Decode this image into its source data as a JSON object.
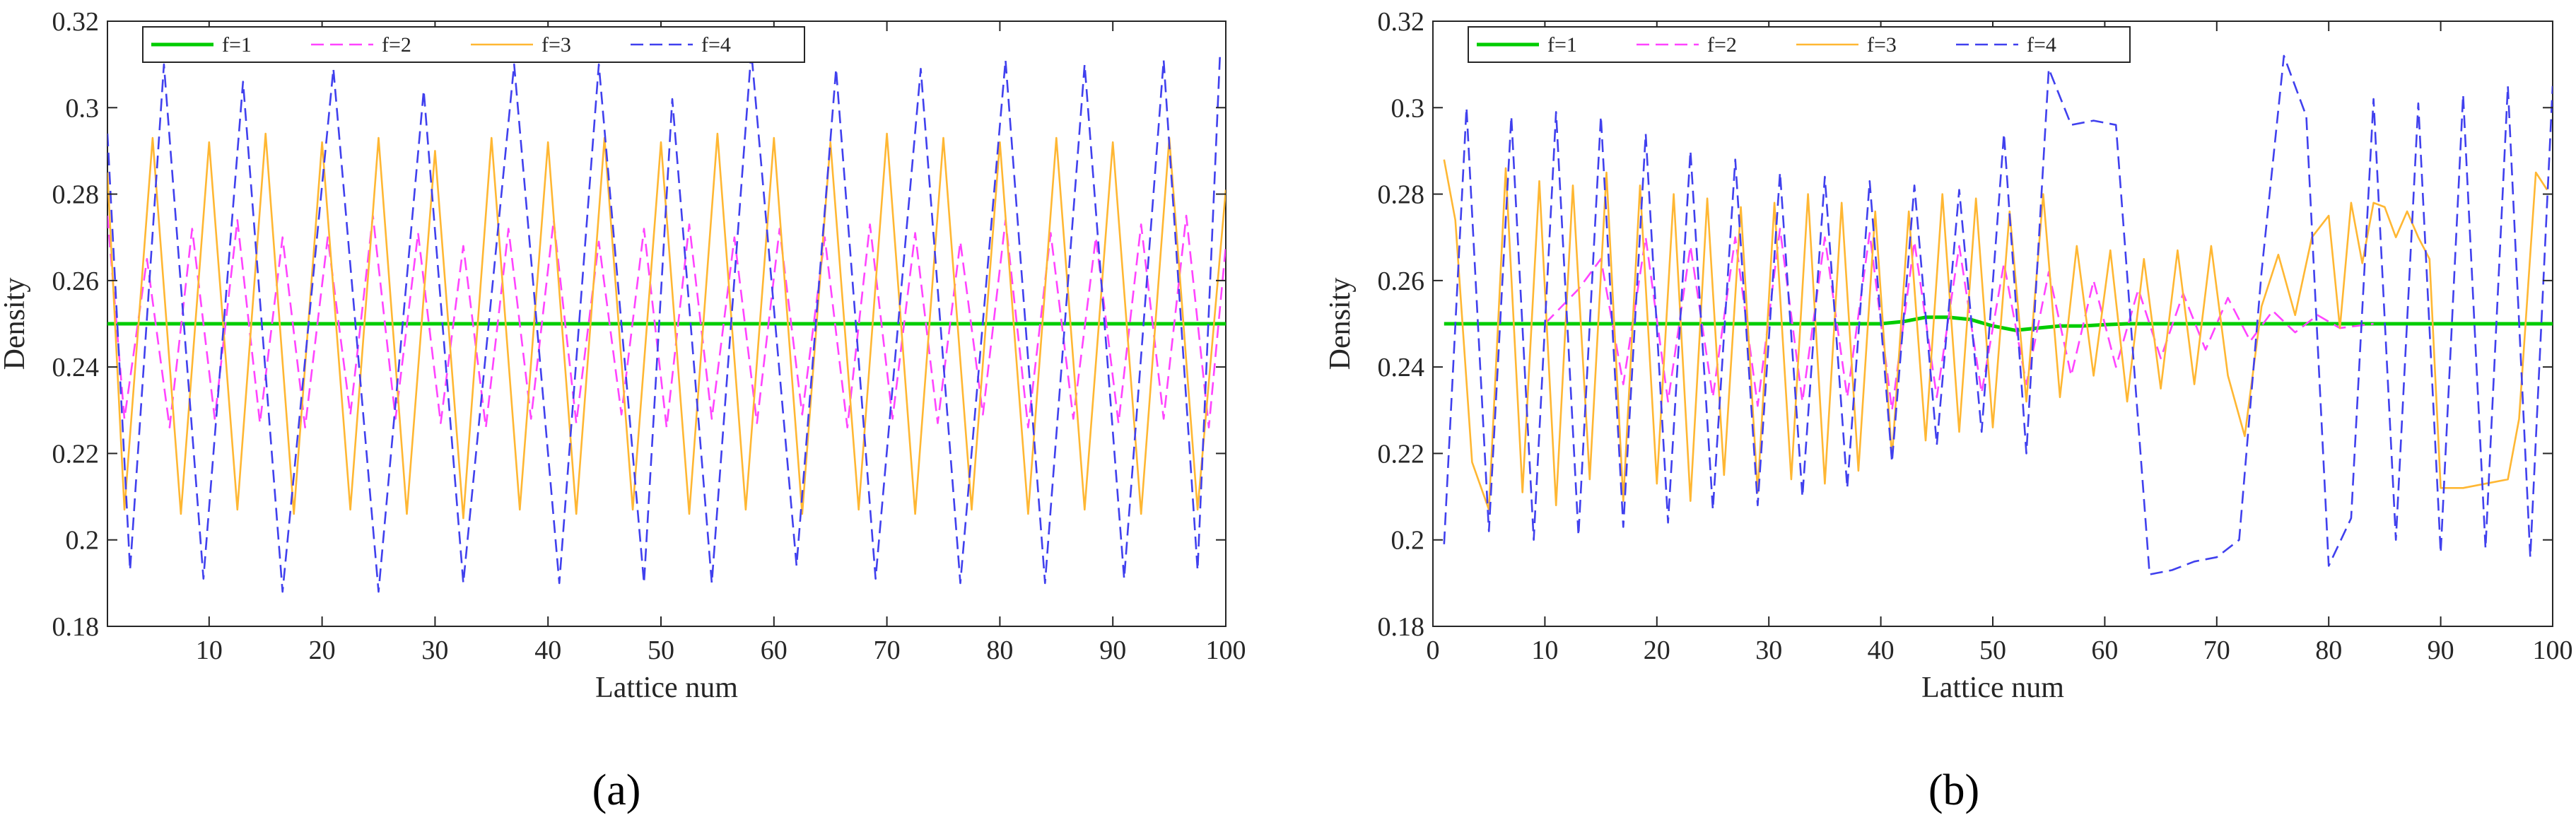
{
  "figure": {
    "captions": [
      "(a)",
      "(b)"
    ]
  },
  "chart_data": [
    {
      "type": "line",
      "panel": "(a)",
      "xlabel": "Lattice num",
      "ylabel": "Density",
      "xlim": [
        1,
        100
      ],
      "ylim": [
        0.18,
        0.32
      ],
      "xticks": [
        10,
        20,
        30,
        40,
        50,
        60,
        70,
        80,
        90,
        100
      ],
      "yticks": [
        0.18,
        0.2,
        0.22,
        0.24,
        0.26,
        0.28,
        0.3,
        0.32
      ],
      "grid": false,
      "legend": {
        "placement": "top-left",
        "orientation": "horizontal"
      },
      "series": [
        {
          "name": "f=1",
          "color": "#00cc00",
          "style": "solid",
          "x": [
            1,
            100
          ],
          "y": [
            0.25,
            0.25
          ]
        },
        {
          "name": "f=2",
          "color": "#ff44ff",
          "style": "dashed",
          "x": [
            1,
            2.5,
            4.5,
            6.5,
            8.5,
            10.5,
            12.5,
            14.5,
            16.5,
            18.5,
            20.5,
            22.5,
            24.5,
            26.5,
            28.5,
            30.5,
            32.5,
            34.5,
            36.5,
            38.5,
            40.5,
            42.5,
            44.5,
            46.5,
            48.5,
            50.5,
            52.5,
            54.5,
            56.5,
            58.5,
            60.5,
            62.5,
            64.5,
            66.5,
            68.5,
            70.5,
            72.5,
            74.5,
            76.5,
            78.5,
            80.5,
            82.5,
            84.5,
            86.5,
            88.5,
            90.5,
            92.5,
            94.5,
            96.5,
            98.5,
            100
          ],
          "y": [
            0.275,
            0.228,
            0.265,
            0.226,
            0.272,
            0.228,
            0.274,
            0.227,
            0.27,
            0.226,
            0.27,
            0.229,
            0.275,
            0.228,
            0.271,
            0.227,
            0.268,
            0.226,
            0.272,
            0.228,
            0.274,
            0.227,
            0.269,
            0.229,
            0.272,
            0.226,
            0.273,
            0.228,
            0.27,
            0.227,
            0.272,
            0.229,
            0.27,
            0.226,
            0.273,
            0.228,
            0.271,
            0.227,
            0.269,
            0.229,
            0.274,
            0.226,
            0.271,
            0.228,
            0.27,
            0.227,
            0.273,
            0.228,
            0.275,
            0.226,
            0.268
          ]
        },
        {
          "name": "f=3",
          "color": "#ffb733",
          "style": "solid",
          "x": [
            1,
            2.5,
            5,
            7.5,
            10,
            12.5,
            15,
            17.5,
            20,
            22.5,
            25,
            27.5,
            30,
            32.5,
            35,
            37.5,
            40,
            42.5,
            45,
            47.5,
            50,
            52.5,
            55,
            57.5,
            60,
            62.5,
            65,
            67.5,
            70,
            72.5,
            75,
            77.5,
            80,
            82.5,
            85,
            87.5,
            90,
            92.5,
            95,
            97.5,
            100
          ],
          "y": [
            0.285,
            0.207,
            0.293,
            0.206,
            0.292,
            0.207,
            0.294,
            0.206,
            0.292,
            0.207,
            0.293,
            0.206,
            0.29,
            0.205,
            0.293,
            0.207,
            0.292,
            0.206,
            0.293,
            0.207,
            0.292,
            0.206,
            0.294,
            0.207,
            0.293,
            0.206,
            0.292,
            0.207,
            0.294,
            0.206,
            0.293,
            0.207,
            0.292,
            0.206,
            0.293,
            0.207,
            0.292,
            0.206,
            0.293,
            0.207,
            0.281
          ]
        },
        {
          "name": "f=4",
          "color": "#4040ee",
          "style": "dashed",
          "x": [
            1,
            3,
            6,
            9.5,
            13,
            16.5,
            21,
            25,
            29,
            32.5,
            37,
            41,
            44.5,
            48.5,
            51,
            54.5,
            58,
            62,
            65.5,
            69,
            73,
            76.5,
            80.5,
            84,
            87.5,
            91,
            94.5,
            97.5,
            99.5
          ],
          "y": [
            0.294,
            0.193,
            0.31,
            0.191,
            0.306,
            0.188,
            0.309,
            0.188,
            0.304,
            0.19,
            0.31,
            0.19,
            0.31,
            0.19,
            0.302,
            0.19,
            0.313,
            0.194,
            0.309,
            0.191,
            0.309,
            0.19,
            0.311,
            0.19,
            0.31,
            0.191,
            0.311,
            0.193,
            0.313
          ]
        }
      ]
    },
    {
      "type": "line",
      "panel": "(b)",
      "xlabel": "Lattice num",
      "ylabel": "Density",
      "xlim": [
        0,
        100
      ],
      "ylim": [
        0.18,
        0.32
      ],
      "xticks": [
        0,
        10,
        20,
        30,
        40,
        50,
        60,
        70,
        80,
        90,
        100
      ],
      "yticks": [
        0.18,
        0.2,
        0.22,
        0.24,
        0.26,
        0.28,
        0.3,
        0.32
      ],
      "grid": false,
      "legend": {
        "placement": "top-left",
        "orientation": "horizontal"
      },
      "series": [
        {
          "name": "f=1",
          "color": "#00cc00",
          "style": "solid",
          "x": [
            1,
            40,
            42,
            44,
            46,
            48,
            50,
            52,
            54,
            56,
            58,
            60,
            62,
            100
          ],
          "y": [
            0.25,
            0.25,
            0.2505,
            0.2515,
            0.2515,
            0.251,
            0.2495,
            0.2485,
            0.249,
            0.2495,
            0.2495,
            0.2498,
            0.25,
            0.25
          ]
        },
        {
          "name": "f=2",
          "color": "#ff44ff",
          "style": "dashed",
          "x": [
            10,
            13,
            15,
            17,
            19,
            21,
            23,
            25,
            27,
            29,
            31,
            33,
            35,
            37,
            39,
            41,
            43,
            45,
            47,
            49,
            51,
            53,
            55,
            57,
            59,
            61,
            63,
            65,
            67,
            69,
            71,
            73,
            75,
            77,
            79,
            81,
            84
          ],
          "y": [
            0.25,
            0.258,
            0.265,
            0.236,
            0.27,
            0.232,
            0.268,
            0.233,
            0.27,
            0.231,
            0.272,
            0.232,
            0.27,
            0.233,
            0.271,
            0.23,
            0.269,
            0.233,
            0.268,
            0.234,
            0.264,
            0.236,
            0.262,
            0.238,
            0.26,
            0.24,
            0.258,
            0.242,
            0.257,
            0.244,
            0.256,
            0.246,
            0.253,
            0.248,
            0.252,
            0.249,
            0.25
          ]
        },
        {
          "name": "f=3",
          "color": "#ffb733",
          "style": "solid",
          "x": [
            1,
            2,
            3.5,
            5,
            6.5,
            8,
            9.5,
            11,
            12.5,
            14,
            15.5,
            17,
            18.5,
            20,
            21.5,
            23,
            24.5,
            26,
            27.5,
            29,
            30.5,
            32,
            33.5,
            35,
            36.5,
            38,
            39.5,
            41,
            42.5,
            44,
            45.5,
            47,
            48.5,
            50,
            51.5,
            53,
            54.5,
            56,
            57.5,
            59,
            60.5,
            62,
            63.5,
            65,
            66.5,
            68,
            69.5,
            71,
            72.5,
            74,
            75.5,
            77,
            78.5,
            80,
            81,
            82,
            83,
            84,
            85,
            86,
            87,
            88,
            89,
            90,
            92,
            94,
            96,
            97,
            98.5,
            99.5
          ],
          "y": [
            0.288,
            0.274,
            0.218,
            0.207,
            0.286,
            0.211,
            0.283,
            0.208,
            0.282,
            0.214,
            0.285,
            0.209,
            0.282,
            0.213,
            0.28,
            0.209,
            0.279,
            0.215,
            0.277,
            0.211,
            0.278,
            0.214,
            0.28,
            0.213,
            0.278,
            0.216,
            0.276,
            0.219,
            0.276,
            0.223,
            0.28,
            0.225,
            0.279,
            0.226,
            0.276,
            0.232,
            0.28,
            0.233,
            0.268,
            0.238,
            0.267,
            0.232,
            0.265,
            0.235,
            0.267,
            0.236,
            0.268,
            0.238,
            0.224,
            0.254,
            0.266,
            0.252,
            0.27,
            0.275,
            0.249,
            0.278,
            0.264,
            0.278,
            0.277,
            0.27,
            0.276,
            0.27,
            0.265,
            0.212,
            0.212,
            0.213,
            0.214,
            0.228,
            0.285,
            0.281
          ]
        },
        {
          "name": "f=4",
          "color": "#4040ee",
          "style": "dashed",
          "x": [
            1,
            3,
            5,
            7,
            9,
            11,
            13,
            15,
            17,
            19,
            21,
            23,
            25,
            27,
            29,
            31,
            33,
            35,
            37,
            39,
            41,
            43,
            45,
            47,
            49,
            51,
            53,
            55,
            57,
            59,
            61,
            64,
            66,
            68,
            70,
            72,
            74,
            76,
            78,
            80,
            82,
            84,
            86,
            88,
            90,
            92,
            94,
            96,
            98,
            100
          ],
          "y": [
            0.199,
            0.3,
            0.202,
            0.298,
            0.2,
            0.299,
            0.201,
            0.298,
            0.203,
            0.294,
            0.204,
            0.29,
            0.207,
            0.288,
            0.208,
            0.285,
            0.21,
            0.284,
            0.212,
            0.283,
            0.218,
            0.282,
            0.222,
            0.281,
            0.225,
            0.294,
            0.22,
            0.309,
            0.296,
            0.297,
            0.296,
            0.192,
            0.193,
            0.195,
            0.196,
            0.2,
            0.262,
            0.312,
            0.298,
            0.194,
            0.205,
            0.302,
            0.2,
            0.301,
            0.197,
            0.303,
            0.198,
            0.305,
            0.196,
            0.305
          ]
        }
      ]
    }
  ]
}
